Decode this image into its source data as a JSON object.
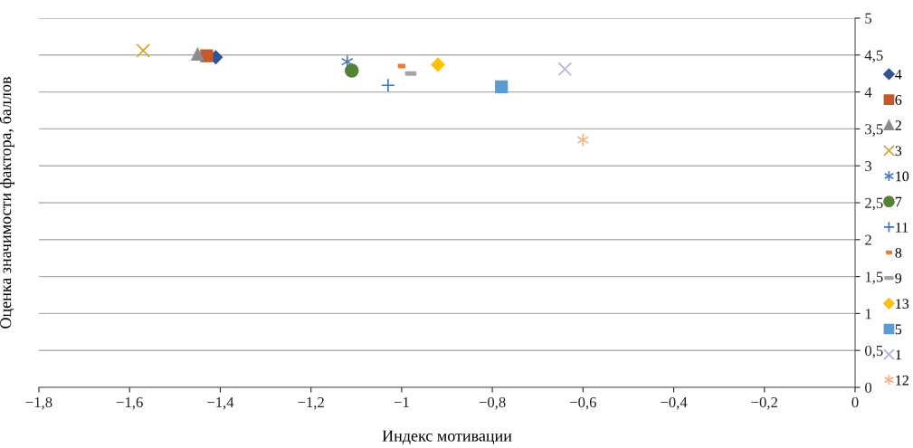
{
  "chart_data": {
    "type": "scatter",
    "xlabel": "Индекс мотивации",
    "ylabel": "Оценка значимости фактора, баллов",
    "xlim": [
      -1.8,
      0
    ],
    "ylim": [
      0,
      5
    ],
    "xticks": [
      {
        "value": -1.8,
        "label": "−1,8"
      },
      {
        "value": -1.6,
        "label": "−1,6"
      },
      {
        "value": -1.4,
        "label": "−1,4"
      },
      {
        "value": -1.2,
        "label": "−1,2"
      },
      {
        "value": -1.0,
        "label": "−1"
      },
      {
        "value": -0.8,
        "label": "−0,8"
      },
      {
        "value": -0.6,
        "label": "−0,6"
      },
      {
        "value": -0.4,
        "label": "−0,4"
      },
      {
        "value": -0.2,
        "label": "−0,2"
      },
      0
    ],
    "yticks": [
      0,
      {
        "value": 0.5,
        "label": "0,5"
      },
      1,
      {
        "value": 1.5,
        "label": "1,5"
      },
      2,
      {
        "value": 2.5,
        "label": "2,5"
      },
      3,
      {
        "value": 3.5,
        "label": "3,5"
      },
      4,
      {
        "value": 4.5,
        "label": "4,5"
      },
      5
    ],
    "grid": "y",
    "legend": "right",
    "series": [
      {
        "name": "4",
        "color": "#2f5597",
        "marker": "diamond",
        "x": [
          -1.41
        ],
        "values": [
          4.47
        ]
      },
      {
        "name": "6",
        "color": "#c55a28",
        "marker": "square",
        "x": [
          -1.43
        ],
        "values": [
          4.49
        ]
      },
      {
        "name": "2",
        "color": "#8c8c8c",
        "marker": "triangle",
        "x": [
          -1.45
        ],
        "values": [
          4.51
        ]
      },
      {
        "name": "3",
        "color": "#dca526",
        "marker": "cross",
        "x": [
          -1.57
        ],
        "values": [
          4.56
        ]
      },
      {
        "name": "10",
        "color": "#4a78c0",
        "marker": "cross",
        "x": [
          -1.12
        ],
        "values": [
          4.41
        ]
      },
      {
        "name": "7",
        "color": "#548235",
        "marker": "circle",
        "x": [
          -1.11
        ],
        "values": [
          4.29
        ]
      },
      {
        "name": "11",
        "color": "#4472c4",
        "marker": "cross",
        "x": [
          -1.03
        ],
        "values": [
          4.09
        ]
      },
      {
        "name": "8",
        "color": "#ed7d31",
        "x": [
          -1.0
        ],
        "values": [
          4.35
        ]
      },
      {
        "name": "9",
        "color": "#a5a5a5",
        "x": [
          -0.98
        ],
        "values": [
          4.25
        ]
      },
      {
        "name": "13",
        "color": "#ffc000",
        "marker": "diamond",
        "x": [
          -0.92
        ],
        "values": [
          4.37
        ]
      },
      {
        "name": "5",
        "color": "#5b9bd5",
        "marker": "square",
        "x": [
          -0.78
        ],
        "values": [
          4.07
        ]
      },
      {
        "name": "1",
        "color": "#a9b4dc",
        "marker": "cross",
        "x": [
          -0.64
        ],
        "values": [
          4.31
        ]
      },
      {
        "name": "12",
        "color": "#f4b183",
        "marker": "cross",
        "x": [
          -0.6
        ],
        "values": [
          3.35
        ]
      }
    ]
  }
}
